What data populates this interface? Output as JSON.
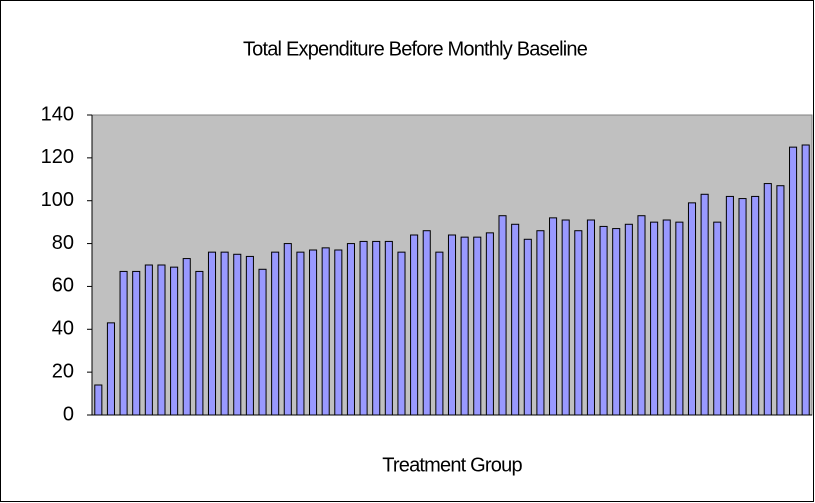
{
  "chart_data": {
    "type": "bar",
    "title": "Total Expenditure Before Monthly Baseline",
    "x_label": "Treatment Group",
    "values": [
      14,
      43,
      67,
      67,
      70,
      70,
      69,
      73,
      67,
      76,
      76,
      75,
      74,
      68,
      76,
      80,
      76,
      77,
      78,
      77,
      80,
      81,
      81,
      81,
      76,
      84,
      86,
      76,
      84,
      83,
      83,
      85,
      93,
      89,
      82,
      86,
      92,
      91,
      86,
      91,
      88,
      87,
      89,
      93,
      90,
      91,
      90,
      99,
      103,
      90,
      102,
      101,
      102,
      108,
      107,
      125,
      126
    ],
    "color": "#9999ff",
    "background": "#c0c0c0",
    "ylim": [
      0,
      140
    ],
    "yticks": [
      0,
      20,
      40,
      60,
      80,
      100,
      120,
      140
    ],
    "grid": false
  }
}
